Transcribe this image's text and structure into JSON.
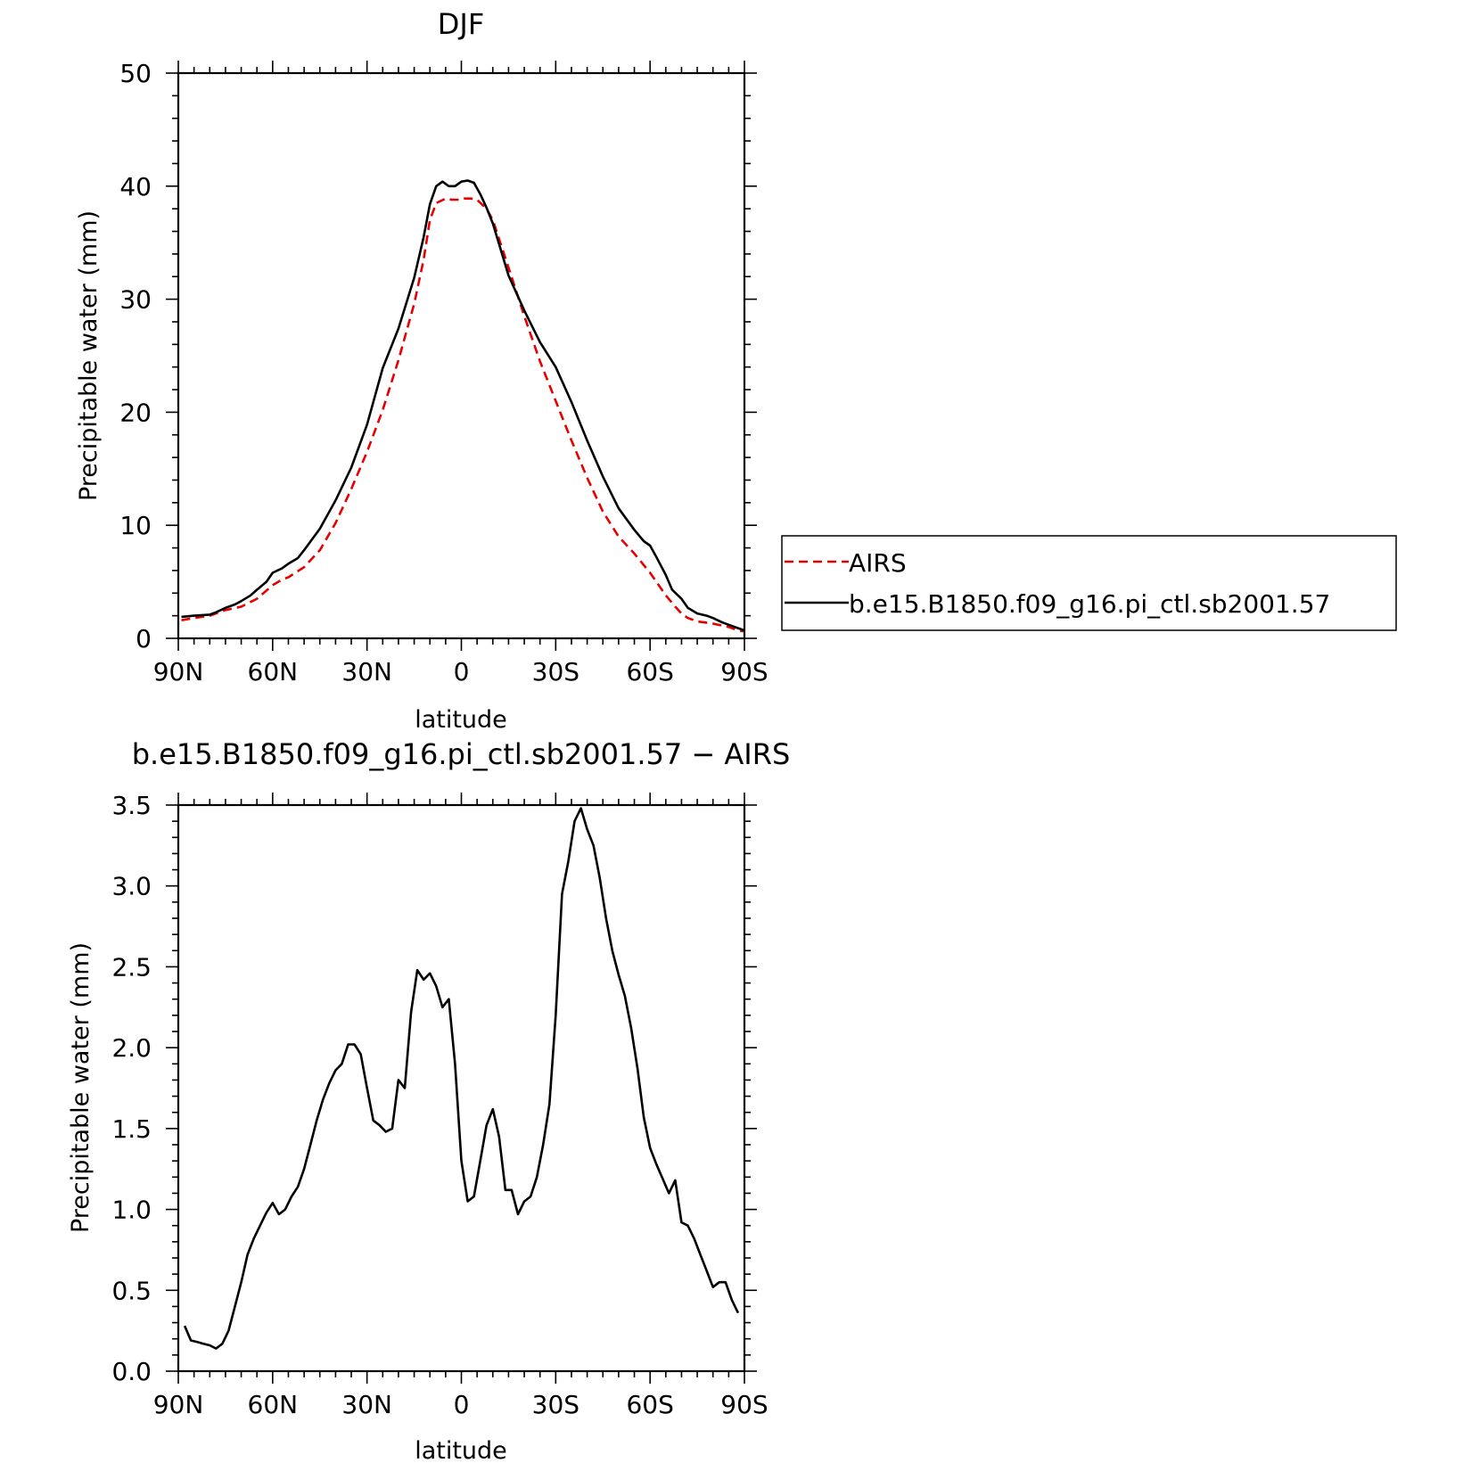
{
  "chart_data": [
    {
      "type": "line",
      "title": "DJF",
      "xlabel": "latitude",
      "ylabel": "Precipitable water (mm)",
      "xlim": [
        90,
        -90
      ],
      "ylim": [
        0,
        50
      ],
      "xticks": [
        {
          "value": 90,
          "label": "90N"
        },
        {
          "value": 60,
          "label": "60N"
        },
        {
          "value": 30,
          "label": "30N"
        },
        {
          "value": 0,
          "label": "0"
        },
        {
          "value": -30,
          "label": "30S"
        },
        {
          "value": -60,
          "label": "60S"
        },
        {
          "value": -90,
          "label": "90S"
        }
      ],
      "yticks": [
        {
          "value": 0,
          "label": "0"
        },
        {
          "value": 10,
          "label": "10"
        },
        {
          "value": 20,
          "label": "20"
        },
        {
          "value": 30,
          "label": "30"
        },
        {
          "value": 40,
          "label": "40"
        },
        {
          "value": 50,
          "label": "50"
        }
      ],
      "legend": {
        "placement": "right",
        "entries": [
          {
            "label": "AIRS",
            "color": "#e60000",
            "dash": "dashed"
          },
          {
            "label": "b.e15.B1850.f09_g16.pi_ctl.sb2001.57",
            "color": "#000000",
            "dash": "solid"
          }
        ]
      },
      "series": [
        {
          "name": "AIRS",
          "color": "#e60000",
          "dash": "dashed",
          "x": [
            89,
            85,
            80,
            75,
            70,
            65,
            60,
            57,
            55,
            50,
            45,
            40,
            35,
            30,
            25,
            20,
            15,
            12,
            10,
            8,
            5,
            3,
            1,
            0,
            -1,
            -3,
            -5,
            -8,
            -10,
            -15,
            -20,
            -25,
            -30,
            -35,
            -40,
            -45,
            -50,
            -55,
            -60,
            -65,
            -68,
            -70,
            -72,
            -75,
            -80,
            -85,
            -88,
            -90
          ],
          "y": [
            1.6,
            1.8,
            2.0,
            2.5,
            2.8,
            3.5,
            4.7,
            5.2,
            5.4,
            6.3,
            7.8,
            10.2,
            13.2,
            16.5,
            20.2,
            24.6,
            29.6,
            33.5,
            37.0,
            38.5,
            38.9,
            38.8,
            38.8,
            38.8,
            38.9,
            38.9,
            38.8,
            38.0,
            37.0,
            32.8,
            28.5,
            24.5,
            21.0,
            17.5,
            14.2,
            11.2,
            9.0,
            7.5,
            5.8,
            3.8,
            2.8,
            2.2,
            1.8,
            1.5,
            1.3,
            1.0,
            0.7,
            0.6
          ]
        },
        {
          "name": "b.e15.B1850.f09_g16.pi_ctl.sb2001.57",
          "color": "#000000",
          "dash": "solid",
          "x": [
            89,
            85,
            80,
            78,
            75,
            72,
            70,
            67,
            65,
            62,
            60,
            57,
            55,
            52,
            50,
            45,
            40,
            35,
            30,
            25,
            20,
            15,
            12,
            10,
            8,
            6,
            4,
            2,
            0,
            -2,
            -4,
            -6,
            -8,
            -10,
            -15,
            -20,
            -25,
            -30,
            -35,
            -40,
            -45,
            -50,
            -55,
            -58,
            -60,
            -62,
            -65,
            -67,
            -70,
            -72,
            -75,
            -78,
            -80,
            -83,
            -85,
            -88,
            -90
          ],
          "y": [
            1.9,
            2.0,
            2.1,
            2.3,
            2.7,
            3.0,
            3.3,
            3.8,
            4.3,
            5.0,
            5.8,
            6.2,
            6.6,
            7.1,
            7.8,
            9.7,
            12.2,
            15.1,
            18.9,
            23.9,
            27.4,
            31.9,
            35.5,
            38.4,
            40.0,
            40.4,
            40.0,
            40.0,
            40.4,
            40.5,
            40.3,
            39.3,
            38.1,
            36.7,
            32.1,
            29.0,
            26.2,
            24.0,
            20.9,
            17.5,
            14.3,
            11.5,
            9.6,
            8.6,
            8.2,
            7.2,
            5.6,
            4.3,
            3.5,
            2.7,
            2.2,
            2.0,
            1.8,
            1.4,
            1.2,
            0.9,
            0.7
          ]
        }
      ]
    },
    {
      "type": "line",
      "title": "b.e15.B1850.f09_g16.pi_ctl.sb2001.57 − AIRS",
      "xlabel": "latitude",
      "ylabel": "Precipitable water (mm)",
      "xlim": [
        90,
        -90
      ],
      "ylim": [
        0,
        3.5
      ],
      "xticks": [
        {
          "value": 90,
          "label": "90N"
        },
        {
          "value": 60,
          "label": "60N"
        },
        {
          "value": 30,
          "label": "30N"
        },
        {
          "value": 0,
          "label": "0"
        },
        {
          "value": -30,
          "label": "30S"
        },
        {
          "value": -60,
          "label": "60S"
        },
        {
          "value": -90,
          "label": "90S"
        }
      ],
      "yticks": [
        {
          "value": 0,
          "label": "0.0"
        },
        {
          "value": 0.5,
          "label": "0.5"
        },
        {
          "value": 1.0,
          "label": "1.0"
        },
        {
          "value": 1.5,
          "label": "1.5"
        },
        {
          "value": 2.0,
          "label": "2.0"
        },
        {
          "value": 2.5,
          "label": "2.5"
        },
        {
          "value": 3.0,
          "label": "3.0"
        },
        {
          "value": 3.5,
          "label": "3.5"
        }
      ],
      "series": [
        {
          "color": "#000000",
          "dash": "solid",
          "x": [
            88,
            86,
            84,
            82,
            80,
            78,
            76,
            74,
            72,
            70,
            68,
            66,
            64,
            62,
            60,
            58,
            56,
            54,
            52,
            50,
            48,
            46,
            44,
            42,
            40,
            38,
            36,
            34,
            32,
            30,
            28,
            26,
            24,
            22,
            20,
            18,
            16,
            14,
            12,
            10,
            8,
            6,
            4,
            2,
            0,
            -2,
            -4,
            -6,
            -8,
            -10,
            -12,
            -14,
            -16,
            -18,
            -20,
            -22,
            -24,
            -26,
            -28,
            -30,
            -32,
            -34,
            -36,
            -38,
            -40,
            -42,
            -44,
            -46,
            -48,
            -50,
            -52,
            -54,
            -56,
            -58,
            -60,
            -62,
            -64,
            -66,
            -68,
            -70,
            -72,
            -74,
            -76,
            -78,
            -80,
            -82,
            -84,
            -86,
            -88
          ],
          "y": [
            0.28,
            0.19,
            0.18,
            0.17,
            0.16,
            0.14,
            0.17,
            0.25,
            0.4,
            0.55,
            0.72,
            0.82,
            0.9,
            0.98,
            1.04,
            0.97,
            1.0,
            1.08,
            1.14,
            1.25,
            1.4,
            1.55,
            1.68,
            1.78,
            1.86,
            1.9,
            2.02,
            2.02,
            1.96,
            1.75,
            1.55,
            1.52,
            1.48,
            1.5,
            1.8,
            1.75,
            2.22,
            2.48,
            2.42,
            2.46,
            2.38,
            2.25,
            2.3,
            1.9,
            1.3,
            1.05,
            1.08,
            1.3,
            1.52,
            1.62,
            1.45,
            1.12,
            1.12,
            0.97,
            1.05,
            1.08,
            1.2,
            1.4,
            1.65,
            2.2,
            2.95,
            3.15,
            3.4,
            3.48,
            3.35,
            3.25,
            3.05,
            2.8,
            2.6,
            2.45,
            2.32,
            2.12,
            1.87,
            1.57,
            1.38,
            1.28,
            1.19,
            1.1,
            1.18,
            0.92,
            0.9,
            0.82,
            0.72,
            0.62,
            0.52,
            0.55,
            0.55,
            0.44,
            0.36
          ]
        }
      ]
    }
  ]
}
